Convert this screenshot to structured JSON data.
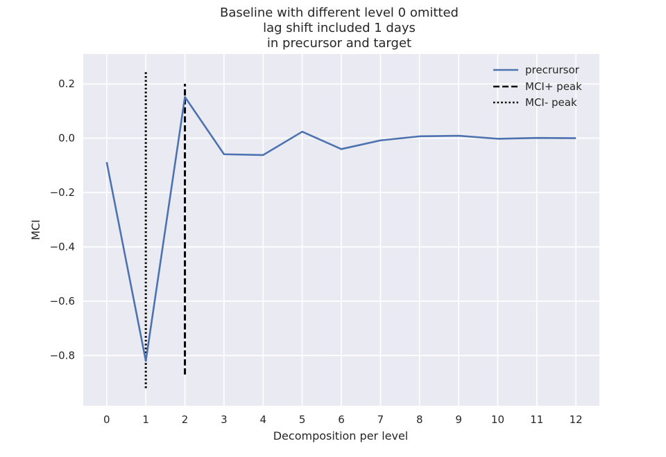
{
  "chart_data": {
    "type": "line",
    "title": [
      "Baseline with different level 0 omitted",
      "lag shift included 1 days",
      "in precursor and target"
    ],
    "xlabel": "Decomposition per level",
    "ylabel": "MCI",
    "xlim": [
      -0.6,
      12.6
    ],
    "ylim": [
      -0.985,
      0.31
    ],
    "x_ticks": [
      0,
      1,
      2,
      3,
      4,
      5,
      6,
      7,
      8,
      9,
      10,
      11,
      12
    ],
    "x_tick_labels": [
      "0",
      "1",
      "2",
      "3",
      "4",
      "5",
      "6",
      "7",
      "8",
      "9",
      "10",
      "11",
      "12"
    ],
    "y_ticks": [
      0.2,
      0.0,
      -0.2,
      -0.4,
      -0.6,
      -0.8
    ],
    "y_tick_labels": [
      "0.2",
      "0.0",
      "−0.2",
      "−0.4",
      "−0.6",
      "−0.8"
    ],
    "grid": true,
    "legend_position": "top-right",
    "series": [
      {
        "name": "precrursor",
        "style": "solid",
        "color": "#4c72b0",
        "x": [
          0,
          1,
          2,
          3,
          4,
          5,
          6,
          7,
          8,
          9,
          10,
          11,
          12
        ],
        "y": [
          -0.088,
          -0.82,
          0.152,
          -0.059,
          -0.062,
          0.024,
          -0.04,
          -0.008,
          0.007,
          0.009,
          -0.002,
          0.001,
          0.0
        ]
      },
      {
        "name": "MCI+ peak",
        "style": "dashed",
        "color": "#000000",
        "x": [
          2,
          2
        ],
        "y": [
          -0.87,
          0.2
        ]
      },
      {
        "name": "MCI- peak",
        "style": "dotted",
        "color": "#000000",
        "x": [
          1,
          1
        ],
        "y": [
          -0.92,
          0.25
        ]
      }
    ],
    "colors": {
      "plot_background": "#eaeaf2",
      "grid": "#ffffff",
      "text": "#262626"
    }
  }
}
